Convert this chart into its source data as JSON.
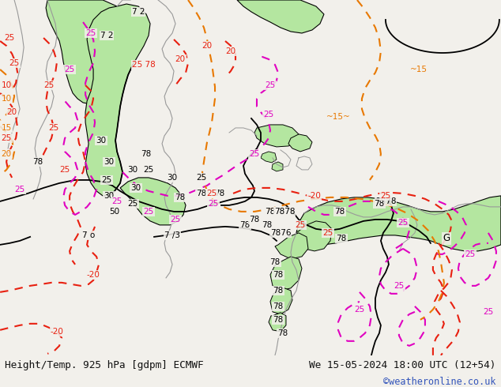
{
  "title_left": "Height/Temp. 925 hPa [gdpm] ECMWF",
  "title_right": "We 15-05-2024 18:00 UTC (12+54)",
  "watermark": "©weatheronline.co.uk",
  "bg_color": "#f2f0eb",
  "map_bg": "#f2f0eb",
  "fig_width": 6.34,
  "fig_height": 4.9,
  "dpi": 100,
  "bottom_bar_height": 0.082,
  "title_fontsize": 9.2,
  "watermark_fontsize": 8.5,
  "watermark_color": "#3355bb",
  "title_color": "#111111"
}
